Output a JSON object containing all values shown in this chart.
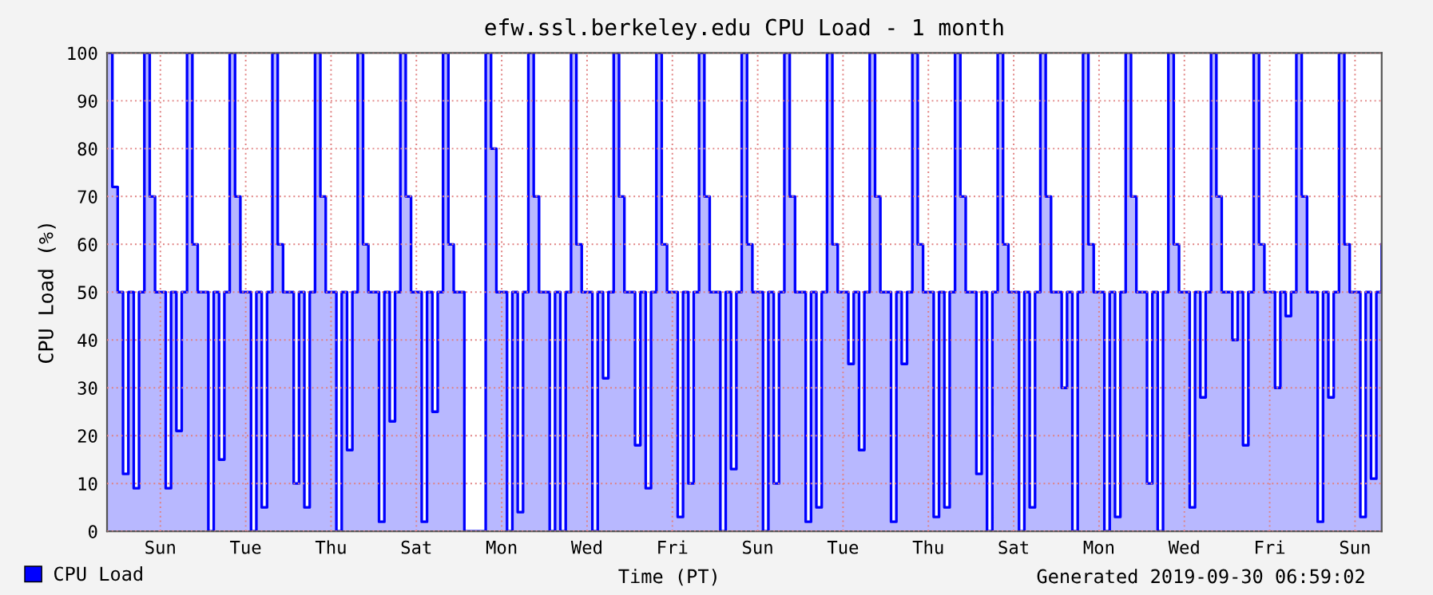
{
  "chart_data": {
    "type": "area",
    "title": "efw.ssl.berkeley.edu CPU Load - 1 month",
    "xlabel": "Time (PT)",
    "ylabel": "CPU Load (%)",
    "annotations": [
      "Generated 2019-09-30 06:59:02"
    ],
    "categories": [
      null,
      null,
      null,
      null,
      null,
      null,
      null,
      null,
      null,
      null,
      "Sun",
      null,
      null,
      null,
      null,
      null,
      null,
      null,
      null,
      null,
      null,
      null,
      null,
      null,
      null,
      null,
      "Tue",
      null,
      null,
      null,
      null,
      null,
      null,
      null,
      null,
      null,
      null,
      null,
      null,
      null,
      null,
      null,
      "Thu",
      null,
      null,
      null,
      null,
      null,
      null,
      null,
      null,
      null,
      null,
      null,
      null,
      null,
      null,
      null,
      "Sat",
      null,
      null,
      null,
      null,
      null,
      null,
      null,
      null,
      null,
      null,
      null,
      null,
      null,
      null,
      null,
      "Mon",
      null,
      null,
      null,
      null,
      null,
      null,
      null,
      null,
      null,
      null,
      null,
      null,
      null,
      null,
      null,
      "Wed",
      null,
      null,
      null,
      null,
      null,
      null,
      null,
      null,
      null,
      null,
      null,
      null,
      null,
      null,
      null,
      "Fri",
      null,
      null,
      null,
      null,
      null,
      null,
      null,
      null,
      null,
      null,
      null,
      null,
      null,
      null,
      null,
      "Sun",
      null,
      null,
      null,
      null,
      null,
      null,
      null,
      null,
      null,
      null,
      null,
      null,
      null,
      null,
      null,
      "Tue",
      null,
      null,
      null,
      null,
      null,
      null,
      null,
      null,
      null,
      null,
      null,
      null,
      null,
      null,
      null,
      "Thu",
      null,
      null,
      null,
      null,
      null,
      null,
      null,
      null,
      null,
      null,
      null,
      null,
      null,
      null,
      null,
      "Sat",
      null,
      null,
      null,
      null,
      null,
      null,
      null,
      null,
      null,
      null,
      null,
      null,
      null,
      null,
      null,
      "Mon",
      null,
      null,
      null,
      null,
      null,
      null,
      null,
      null,
      null,
      null,
      null,
      null,
      null,
      null,
      null,
      "Wed",
      null,
      null,
      null,
      null,
      null,
      null,
      null,
      null,
      null,
      null,
      null,
      null,
      null,
      null,
      null,
      "Fri",
      null,
      null,
      null,
      null,
      null,
      null,
      null,
      null,
      null,
      null,
      null,
      null,
      null,
      null,
      null,
      "Sun",
      null,
      null,
      null,
      null,
      null
    ],
    "ylim": [
      0,
      100
    ],
    "yticks": [
      0,
      10,
      20,
      30,
      40,
      50,
      60,
      70,
      80,
      90,
      100
    ],
    "grid": true,
    "legend": "bottom left",
    "series": [
      {
        "name": "CPU Load",
        "color": "#0000ff",
        "values": [
          100,
          72,
          50,
          12,
          50,
          9,
          50,
          100,
          70,
          50,
          50,
          9,
          50,
          21,
          50,
          100,
          60,
          50,
          50,
          0,
          50,
          15,
          50,
          100,
          70,
          50,
          50,
          0,
          50,
          5,
          50,
          100,
          60,
          50,
          50,
          10,
          50,
          5,
          50,
          100,
          70,
          50,
          50,
          0,
          50,
          17,
          50,
          100,
          60,
          50,
          50,
          2,
          50,
          23,
          50,
          100,
          70,
          50,
          50,
          2,
          50,
          25,
          50,
          100,
          60,
          50,
          50,
          0,
          0,
          0,
          0,
          100,
          80,
          50,
          50,
          0,
          50,
          4,
          50,
          100,
          70,
          50,
          50,
          0,
          50,
          0,
          50,
          100,
          60,
          50,
          50,
          0,
          50,
          32,
          50,
          100,
          70,
          50,
          50,
          18,
          50,
          9,
          50,
          100,
          60,
          50,
          50,
          3,
          50,
          10,
          50,
          100,
          70,
          50,
          50,
          0,
          50,
          13,
          50,
          100,
          60,
          50,
          50,
          0,
          50,
          10,
          50,
          100,
          70,
          50,
          50,
          2,
          50,
          5,
          50,
          100,
          60,
          50,
          50,
          35,
          50,
          17,
          50,
          100,
          70,
          50,
          50,
          2,
          50,
          35,
          50,
          100,
          60,
          50,
          50,
          3,
          50,
          5,
          50,
          100,
          70,
          50,
          50,
          12,
          50,
          0,
          50,
          100,
          60,
          50,
          50,
          0,
          50,
          5,
          50,
          100,
          70,
          50,
          50,
          30,
          50,
          0,
          50,
          100,
          60,
          50,
          50,
          0,
          50,
          3,
          50,
          100,
          70,
          50,
          50,
          10,
          50,
          0,
          50,
          100,
          60,
          50,
          50,
          5,
          50,
          28,
          50,
          100,
          70,
          50,
          50,
          40,
          50,
          18,
          50,
          100,
          60,
          50,
          50,
          30,
          50,
          45,
          50,
          100,
          70,
          50,
          50,
          2,
          50,
          28,
          50,
          100,
          60,
          50,
          50,
          3,
          50,
          11,
          50,
          60
        ]
      }
    ]
  }
}
